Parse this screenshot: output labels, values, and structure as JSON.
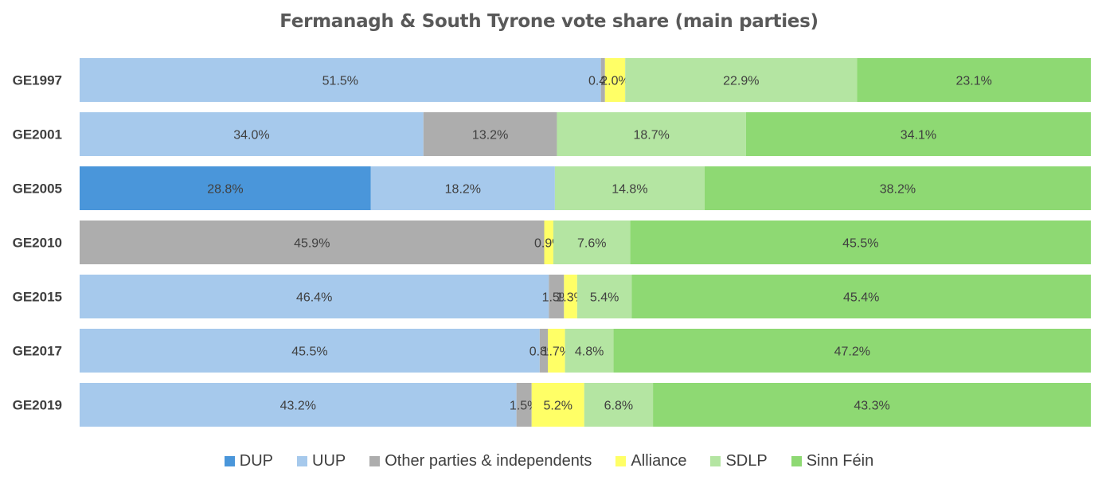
{
  "chart_data": {
    "type": "bar",
    "orientation": "horizontal",
    "stacked": true,
    "title": "Fermanagh & South Tyrone vote share (main parties)",
    "categories": [
      "GE1997",
      "GE2001",
      "GE2005",
      "GE2010",
      "GE2015",
      "GE2017",
      "GE2019"
    ],
    "series": [
      {
        "name": "DUP",
        "color": "#4A96DA",
        "values": [
          0,
          0,
          28.8,
          0,
          0,
          0,
          0
        ]
      },
      {
        "name": "UUP",
        "color": "#A6C9EC",
        "values": [
          51.5,
          34.0,
          18.2,
          0,
          46.4,
          45.5,
          43.2
        ]
      },
      {
        "name": "Other parties & independents",
        "color": "#ADADAD",
        "values": [
          0.4,
          13.2,
          0,
          45.9,
          1.5,
          0.8,
          1.5
        ]
      },
      {
        "name": "Alliance",
        "color": "#FFFF66",
        "values": [
          2.0,
          0,
          0,
          0.9,
          1.3,
          1.7,
          5.2
        ]
      },
      {
        "name": "SDLP",
        "color": "#B4E5A2",
        "values": [
          22.9,
          18.7,
          14.8,
          7.6,
          5.4,
          4.8,
          6.8
        ]
      },
      {
        "name": "Sinn Féin",
        "color": "#8ED973",
        "values": [
          23.1,
          34.1,
          38.2,
          45.5,
          45.4,
          47.2,
          43.3
        ]
      }
    ],
    "value_suffix": "%",
    "legend_position": "bottom",
    "grid": false
  }
}
